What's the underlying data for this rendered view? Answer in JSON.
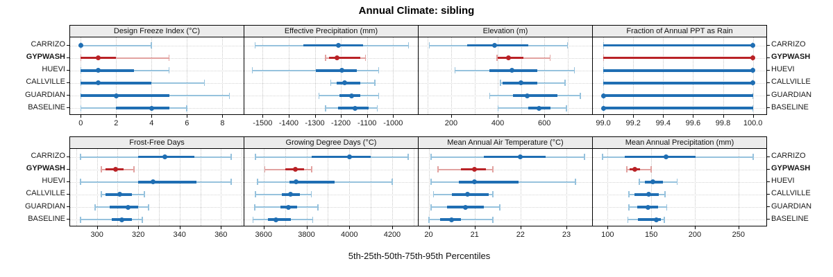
{
  "title": "Annual Climate: sibling",
  "caption": "5th-25th-50th-75th-95th Percentiles",
  "sites": [
    "CARRIZO",
    "GYPWASH",
    "HUEVI",
    "CALLVILLE",
    "GUARDIAN",
    "BASELINE"
  ],
  "highlight_site": "GYPWASH",
  "colors": {
    "series_blue": "#1f6eb3",
    "series_blue_light": "#96c2dd",
    "series_red": "#b92226",
    "series_red_light": "#e2a2a0",
    "strip_bg": "#ececec",
    "panel_border": "#000000",
    "grid": "#c6c6c6"
  },
  "chart_data": {
    "type": "scatter",
    "style": "median dot with 5th-95th whisker (light, capped) and 25th-75th thick band; one row per site; GYPWASH highlighted red",
    "percentile_order": [
      "p5",
      "p25",
      "p50",
      "p75",
      "p95"
    ],
    "legend_position": "none",
    "grid": "dotted vertical at ticks, dotted horizontal per site row",
    "panels": [
      {
        "title": "Design Freeze Index (°C)",
        "row": 0,
        "col": 0,
        "xlim": [
          -0.6,
          9.2
        ],
        "tick_values": [
          0,
          2,
          4,
          6,
          8
        ],
        "tick_labels": [
          "0",
          "2",
          "4",
          "6",
          "8"
        ],
        "grid_values": [
          0,
          2,
          4,
          6,
          8
        ],
        "series": {
          "CARRIZO": [
            0,
            0,
            0,
            0,
            4
          ],
          "GYPWASH": [
            0,
            0,
            1,
            2,
            5
          ],
          "HUEVI": [
            0,
            0,
            1,
            3,
            5
          ],
          "CALLVILLE": [
            0,
            0,
            1,
            4,
            7
          ],
          "GUARDIAN": [
            0,
            0,
            2,
            5,
            8.4
          ],
          "BASELINE": [
            0,
            2,
            4,
            5,
            6
          ]
        }
      },
      {
        "title": "Effective Precipitation (mm)",
        "row": 0,
        "col": 1,
        "xlim": [
          -1570,
          -905
        ],
        "tick_values": [
          -1500,
          -1400,
          -1300,
          -1200,
          -1100,
          -1000
        ],
        "tick_labels": [
          "-1500",
          "-1400",
          "-1300",
          "-1200",
          "-1100",
          "-1000"
        ],
        "grid_values": [
          -1500,
          -1400,
          -1300,
          -1200,
          -1100,
          -1000
        ],
        "series": {
          "CARRIZO": [
            -1530,
            -1345,
            -1210,
            -1115,
            -940
          ],
          "GYPWASH": [
            -1260,
            -1245,
            -1215,
            -1125,
            -1105
          ],
          "HUEVI": [
            -1540,
            -1295,
            -1195,
            -1140,
            -1055
          ],
          "CALLVILLE": [
            -1240,
            -1215,
            -1185,
            -1125,
            -1070
          ],
          "GUARDIAN": [
            -1285,
            -1205,
            -1160,
            -1125,
            -1055
          ],
          "BASELINE": [
            -1260,
            -1210,
            -1145,
            -1095,
            -1060
          ]
        }
      },
      {
        "title": "Elevation (m)",
        "row": 0,
        "col": 2,
        "xlim": [
          60,
          805
        ],
        "tick_values": [
          200,
          400,
          600
        ],
        "tick_labels": [
          "200",
          "400",
          "600"
        ],
        "grid_values": [
          100,
          200,
          300,
          400,
          500,
          600,
          700
        ],
        "series": {
          "CARRIZO": [
            105,
            270,
            385,
            530,
            700
          ],
          "GYPWASH": [
            395,
            400,
            445,
            510,
            625
          ],
          "HUEVI": [
            215,
            365,
            460,
            570,
            730
          ],
          "CALLVILLE": [
            410,
            420,
            500,
            570,
            690
          ],
          "GUARDIAN": [
            365,
            465,
            525,
            655,
            755
          ],
          "BASELINE": [
            400,
            530,
            578,
            625,
            695
          ]
        }
      },
      {
        "title": "Fraction of Annual PPT as Rain",
        "row": 0,
        "col": 3,
        "xlim": [
          98.93,
          100.09
        ],
        "tick_values": [
          99.0,
          99.2,
          99.4,
          99.6,
          99.8,
          100.0
        ],
        "tick_labels": [
          "99.0",
          "99.2",
          "99.4",
          "99.6",
          "99.8",
          "100.0"
        ],
        "grid_values": [
          99.0,
          99.2,
          99.4,
          99.6,
          99.8,
          100.0
        ],
        "series": {
          "CARRIZO": [
            99.0,
            99.0,
            100.0,
            100.0,
            100.0
          ],
          "GYPWASH": [
            99.0,
            99.0,
            100.0,
            100.0,
            100.0
          ],
          "HUEVI": [
            99.0,
            99.0,
            100.0,
            100.0,
            100.0
          ],
          "CALLVILLE": [
            99.0,
            99.0,
            100.0,
            100.0,
            100.0
          ],
          "GUARDIAN": [
            99.0,
            99.0,
            99.0,
            100.0,
            100.0
          ],
          "BASELINE": [
            99.0,
            99.0,
            99.0,
            100.0,
            100.0
          ]
        }
      },
      {
        "title": "Frost-Free Days",
        "row": 1,
        "col": 0,
        "xlim": [
          287,
          371
        ],
        "tick_values": [
          300,
          320,
          340,
          360
        ],
        "tick_labels": [
          "300",
          "320",
          "340",
          "360"
        ],
        "grid_values": [
          290,
          300,
          310,
          320,
          330,
          340,
          350,
          360,
          370
        ],
        "series": {
          "CARRIZO": [
            292,
            320,
            333,
            347,
            365
          ],
          "GYPWASH": [
            302,
            304,
            309,
            313,
            318
          ],
          "HUEVI": [
            292,
            320,
            327,
            348,
            365
          ],
          "CALLVILLE": [
            302,
            304,
            311,
            317,
            323
          ],
          "GUARDIAN": [
            299,
            306,
            315,
            320,
            325
          ],
          "BASELINE": [
            292,
            307,
            312,
            317,
            322
          ]
        }
      },
      {
        "title": "Growing Degree Days (°C)",
        "row": 1,
        "col": 1,
        "xlim": [
          3510,
          4320
        ],
        "tick_values": [
          3600,
          3800,
          4000,
          4200
        ],
        "tick_labels": [
          "3600",
          "3800",
          "4000",
          "4200"
        ],
        "grid_values": [
          3600,
          3700,
          3800,
          3900,
          4000,
          4100,
          4200,
          4300
        ],
        "series": {
          "CARRIZO": [
            3560,
            3825,
            4000,
            4100,
            4275
          ],
          "GYPWASH": [
            3605,
            3700,
            3748,
            3790,
            3825
          ],
          "HUEVI": [
            3570,
            3720,
            3752,
            3930,
            4200
          ],
          "CALLVILLE": [
            3560,
            3685,
            3725,
            3770,
            3823
          ],
          "GUARDIAN": [
            3558,
            3680,
            3717,
            3755,
            3855
          ],
          "BASELINE": [
            3550,
            3620,
            3658,
            3727,
            3830
          ]
        }
      },
      {
        "title": "Mean Annual Air Temperature (°C)",
        "row": 1,
        "col": 2,
        "xlim": [
          19.78,
          23.56
        ],
        "tick_values": [
          20,
          21,
          22,
          23
        ],
        "tick_labels": [
          "20",
          "21",
          "22",
          "23"
        ],
        "grid_values": [
          20,
          21,
          22,
          23
        ],
        "series": {
          "CARRIZO": [
            20.05,
            21.2,
            22.0,
            22.55,
            23.4
          ],
          "GYPWASH": [
            20.2,
            20.7,
            21.0,
            21.25,
            21.4
          ],
          "HUEVI": [
            20.05,
            20.65,
            21.0,
            21.95,
            23.2
          ],
          "CALLVILLE": [
            20.1,
            20.5,
            20.85,
            21.3,
            21.4
          ],
          "GUARDIAN": [
            20.05,
            20.4,
            20.8,
            21.2,
            21.55
          ],
          "BASELINE": [
            20.0,
            20.25,
            20.5,
            20.7,
            21.4
          ]
        }
      },
      {
        "title": "Mean Annual Precipitation (mm)",
        "row": 1,
        "col": 3,
        "xlim": [
          83,
          282
        ],
        "tick_values": [
          100,
          150,
          200,
          250
        ],
        "tick_labels": [
          "100",
          "150",
          "200",
          "250"
        ],
        "grid_values": [
          100,
          150,
          200,
          250
        ],
        "series": {
          "CARRIZO": [
            94,
            120,
            167,
            201,
            267
          ],
          "GYPWASH": [
            122,
            125,
            131,
            137,
            150
          ],
          "HUEVI": [
            136,
            143,
            152,
            163,
            180
          ],
          "CALLVILLE": [
            124,
            131,
            147,
            159,
            166
          ],
          "GUARDIAN": [
            124,
            134,
            146,
            158,
            168
          ],
          "BASELINE": [
            123,
            135,
            156,
            161,
            165
          ]
        }
      }
    ]
  }
}
